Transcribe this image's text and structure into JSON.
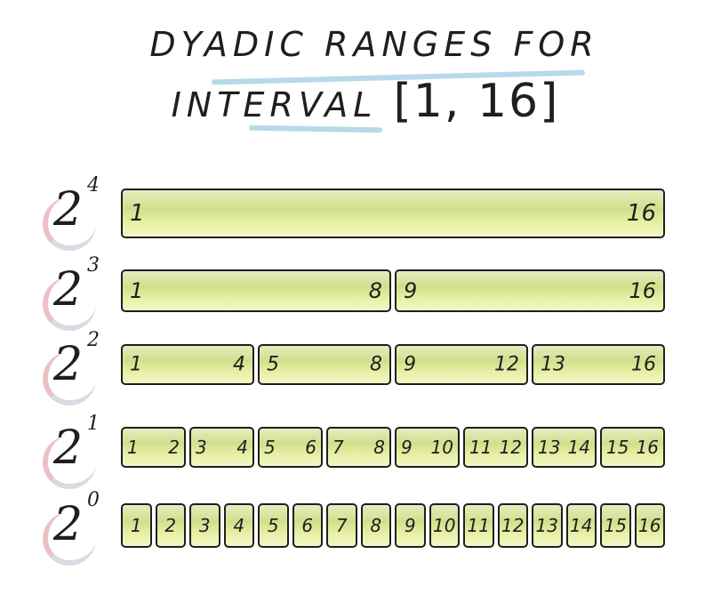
{
  "title": {
    "line1": "DYADIC RANGES FOR",
    "line2_text": "INTERVAL",
    "interval": "[1, 16]"
  },
  "colors": {
    "ink": "#1f1f1f",
    "bar_fill": "#cfe08c",
    "underline": "#a9d4e4",
    "exp_shadow_pink": "#e4a7ad",
    "exp_shadow_grey": "#c9ccd6"
  },
  "levels": [
    {
      "base": "2",
      "exponent": "4",
      "ranges": [
        {
          "lo": "1",
          "hi": "16"
        }
      ]
    },
    {
      "base": "2",
      "exponent": "3",
      "ranges": [
        {
          "lo": "1",
          "hi": "8"
        },
        {
          "lo": "9",
          "hi": "16"
        }
      ]
    },
    {
      "base": "2",
      "exponent": "2",
      "ranges": [
        {
          "lo": "1",
          "hi": "4"
        },
        {
          "lo": "5",
          "hi": "8"
        },
        {
          "lo": "9",
          "hi": "12"
        },
        {
          "lo": "13",
          "hi": "16"
        }
      ]
    },
    {
      "base": "2",
      "exponent": "1",
      "ranges": [
        {
          "lo": "1",
          "hi": "2"
        },
        {
          "lo": "3",
          "hi": "4"
        },
        {
          "lo": "5",
          "hi": "6"
        },
        {
          "lo": "7",
          "hi": "8"
        },
        {
          "lo": "9",
          "hi": "10"
        },
        {
          "lo": "11",
          "hi": "12"
        },
        {
          "lo": "13",
          "hi": "14"
        },
        {
          "lo": "15",
          "hi": "16"
        }
      ]
    },
    {
      "base": "2",
      "exponent": "0",
      "ranges": [
        {
          "lo": "1"
        },
        {
          "lo": "2"
        },
        {
          "lo": "3"
        },
        {
          "lo": "4"
        },
        {
          "lo": "5"
        },
        {
          "lo": "6"
        },
        {
          "lo": "7"
        },
        {
          "lo": "8"
        },
        {
          "lo": "9"
        },
        {
          "lo": "10"
        },
        {
          "lo": "11"
        },
        {
          "lo": "12"
        },
        {
          "lo": "13"
        },
        {
          "lo": "14"
        },
        {
          "lo": "15"
        },
        {
          "lo": "16"
        }
      ]
    }
  ]
}
